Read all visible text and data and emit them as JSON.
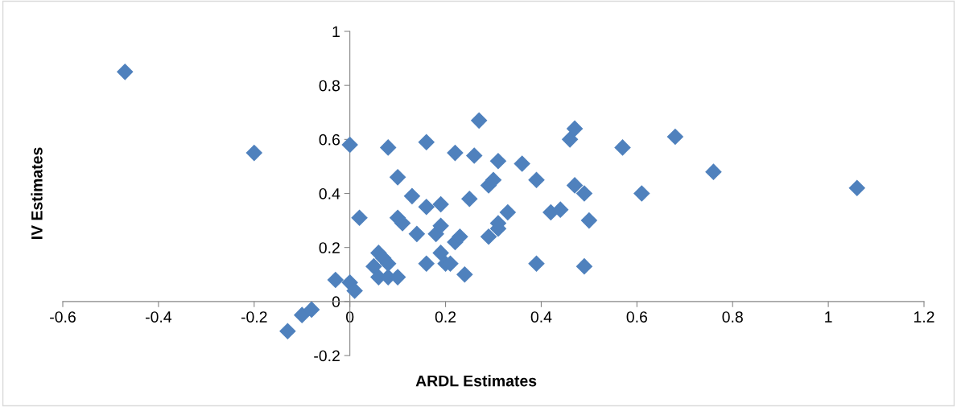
{
  "chart_data": {
    "type": "scatter",
    "xlabel": "ARDL Estimates",
    "ylabel": "IV Estimates",
    "xlim": [
      -0.6,
      1.2
    ],
    "xticks": [
      -0.6,
      -0.4,
      -0.2,
      0,
      0.2,
      0.4,
      0.6,
      0.8,
      1,
      1.2
    ],
    "ylim": [
      -0.2,
      1
    ],
    "yticks": [
      -0.2,
      0,
      0.2,
      0.4,
      0.6,
      0.8,
      1
    ],
    "marker": "diamond",
    "grid": false,
    "series": [
      {
        "color": "#4f81bd",
        "x": [
          -0.47,
          -0.2,
          -0.13,
          -0.1,
          -0.08,
          -0.03,
          0,
          0,
          0.01,
          0.02,
          0.05,
          0.06,
          0.06,
          0.07,
          0.08,
          0.08,
          0.08,
          0.1,
          0.1,
          0.11,
          0.1,
          0.13,
          0.14,
          0.16,
          0.16,
          0.16,
          0.18,
          0.19,
          0.19,
          0.19,
          0.2,
          0.21,
          0.22,
          0.22,
          0.23,
          0.24,
          0.25,
          0.26,
          0.27,
          0.29,
          0.3,
          0.31,
          0.29,
          0.31,
          0.31,
          0.33,
          0.36,
          0.39,
          0.39,
          0.42,
          0.44,
          0.46,
          0.47,
          0.47,
          0.49,
          0.5,
          0.49,
          0.57,
          0.61,
          0.68,
          0.76,
          1.06
        ],
        "values": [
          0.85,
          0.55,
          -0.11,
          -0.05,
          -0.03,
          0.08,
          0.58,
          0.07,
          0.04,
          0.31,
          0.13,
          0.18,
          0.09,
          0.16,
          0.14,
          0.09,
          0.57,
          0.46,
          0.31,
          0.29,
          0.09,
          0.39,
          0.25,
          0.59,
          0.35,
          0.14,
          0.25,
          0.36,
          0.28,
          0.18,
          0.14,
          0.14,
          0.55,
          0.22,
          0.24,
          0.1,
          0.38,
          0.54,
          0.67,
          0.43,
          0.45,
          0.52,
          0.24,
          0.27,
          0.29,
          0.33,
          0.51,
          0.45,
          0.14,
          0.33,
          0.34,
          0.6,
          0.64,
          0.43,
          0.4,
          0.3,
          0.13,
          0.57,
          0.4,
          0.61,
          0.48,
          0.42
        ]
      }
    ]
  }
}
